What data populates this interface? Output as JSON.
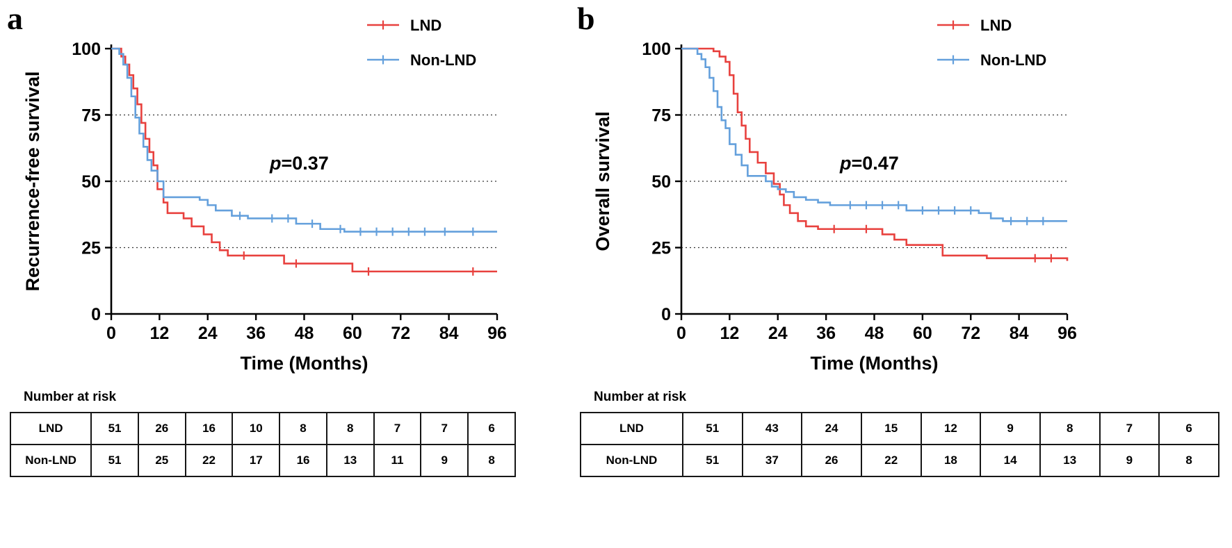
{
  "background": "#ffffff",
  "colors": {
    "lnd": "#e8413e",
    "non_lnd": "#64a0dc",
    "axis": "#000000",
    "grid": "#333333"
  },
  "chart_data": [
    {
      "type": "line",
      "subtype": "kaplan-meier-step",
      "panel_letter": "a",
      "title": "",
      "ylabel": "Recurrence-free survival",
      "xlabel": "Time (Months)",
      "p_label": "p",
      "p_value_text": "=0.37",
      "xlim": [
        0,
        96
      ],
      "ylim": [
        0,
        100
      ],
      "xticks": [
        0,
        12,
        24,
        36,
        48,
        60,
        72,
        84,
        96
      ],
      "yticks": [
        0,
        25,
        50,
        75,
        100
      ],
      "gridlines_y": [
        25,
        50,
        75
      ],
      "grid_style": "dotted",
      "legend_position": "top-right",
      "series": [
        {
          "name": "LND",
          "color": "#e8413e",
          "x": [
            0,
            2.5,
            3.5,
            4.5,
            5.5,
            6.5,
            7.5,
            8.5,
            9.5,
            10.5,
            11.5,
            13,
            14,
            18,
            20,
            23,
            25,
            27,
            29,
            43,
            60,
            96
          ],
          "y": [
            100,
            97,
            94,
            90,
            85,
            79,
            72,
            66,
            61,
            56,
            47,
            42,
            38,
            36,
            33,
            30,
            27,
            24,
            22,
            19,
            16,
            16
          ],
          "censor_x": [
            33,
            46,
            64,
            90
          ]
        },
        {
          "name": "Non-LND",
          "color": "#64a0dc",
          "x": [
            0,
            2,
            3,
            4,
            5,
            6,
            7,
            8,
            9,
            10,
            11.5,
            13,
            22,
            24,
            26,
            30,
            34,
            46,
            52,
            58,
            96
          ],
          "y": [
            100,
            98,
            94,
            89,
            82,
            74,
            68,
            63,
            58,
            54,
            50,
            44,
            43,
            41,
            39,
            37,
            36,
            34,
            32,
            31,
            31
          ],
          "censor_x": [
            32,
            40,
            44,
            50,
            57,
            62,
            66,
            70,
            74,
            78,
            83,
            90
          ]
        }
      ],
      "risk_table": {
        "title": "Number at risk",
        "rows": [
          {
            "label": "LND",
            "values": [
              "51",
              "26",
              "16",
              "10",
              "8",
              "8",
              "7",
              "7",
              "6"
            ]
          },
          {
            "label": "Non-LND",
            "values": [
              "51",
              "25",
              "22",
              "17",
              "16",
              "13",
              "11",
              "9",
              "8"
            ]
          }
        ]
      }
    },
    {
      "type": "line",
      "subtype": "kaplan-meier-step",
      "panel_letter": "b",
      "title": "",
      "ylabel": "Overall survival",
      "xlabel": "Time (Months)",
      "p_label": "p",
      "p_value_text": "=0.47",
      "xlim": [
        0,
        96
      ],
      "ylim": [
        0,
        100
      ],
      "xticks": [
        0,
        12,
        24,
        36,
        48,
        60,
        72,
        84,
        96
      ],
      "yticks": [
        0,
        25,
        50,
        75,
        100
      ],
      "gridlines_y": [
        25,
        50,
        75
      ],
      "grid_style": "dotted",
      "legend_position": "top-right",
      "series": [
        {
          "name": "LND",
          "color": "#e8413e",
          "x": [
            0,
            8,
            9.5,
            11,
            12,
            13,
            14,
            15,
            16,
            17,
            19,
            21,
            23,
            24.5,
            25.5,
            27,
            29,
            31,
            34,
            50,
            53,
            56,
            65,
            76,
            96
          ],
          "y": [
            100,
            99,
            97,
            95,
            90,
            83,
            76,
            71,
            66,
            61,
            57,
            53,
            49,
            45,
            41,
            38,
            35,
            33,
            32,
            30,
            28,
            26,
            22,
            21,
            20
          ],
          "censor_x": [
            38,
            46,
            88,
            92
          ]
        },
        {
          "name": "Non-LND",
          "color": "#64a0dc",
          "x": [
            0,
            4,
            5,
            6,
            7,
            8,
            9,
            10,
            11,
            12,
            13.5,
            15,
            16.5,
            21,
            22.5,
            24,
            26,
            28,
            31,
            34,
            37,
            56,
            74,
            77,
            80,
            96
          ],
          "y": [
            100,
            98,
            96,
            93,
            89,
            84,
            78,
            73,
            70,
            64,
            60,
            56,
            52,
            50,
            48,
            47,
            46,
            44,
            43,
            42,
            41,
            39,
            38,
            36,
            35,
            35
          ],
          "censor_x": [
            42,
            46,
            50,
            54,
            60,
            64,
            68,
            72,
            82,
            86,
            90
          ]
        }
      ],
      "risk_table": {
        "title": "Number at risk",
        "rows": [
          {
            "label": "LND",
            "values": [
              "51",
              "43",
              "24",
              "15",
              "12",
              "9",
              "8",
              "7",
              "6"
            ]
          },
          {
            "label": "Non-LND",
            "values": [
              "51",
              "37",
              "26",
              "22",
              "18",
              "14",
              "13",
              "9",
              "8"
            ]
          }
        ]
      }
    }
  ]
}
